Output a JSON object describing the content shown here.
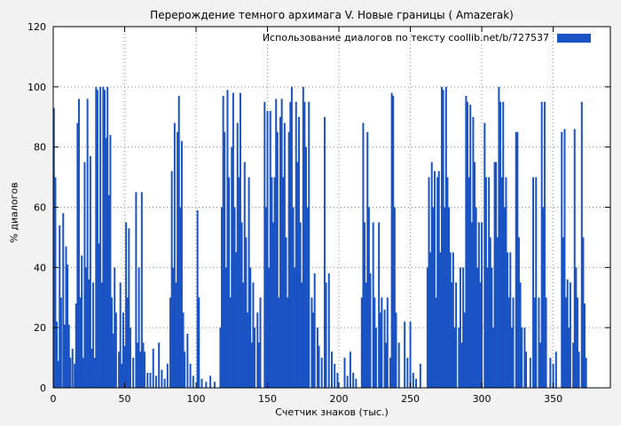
{
  "title": "Перерождение темного архимага V. Новые границы ( Amazerak)",
  "legend": {
    "label": "Использование диалогов по тексту coollib.net/b/727537"
  },
  "colors": {
    "bar": "#1a53c4",
    "grid": "#8f8f8f",
    "axis": "#000000",
    "figure_bg": "#f2f2f2",
    "plot_bg": "#ffffff"
  },
  "chart_data": {
    "type": "bar",
    "title": "Перерождение темного архимага V. Новые границы ( Amazerak)",
    "legend": "Использование диалогов по тексту coollib.net/b/727537",
    "xlabel": "Счетчик знаков (тыс.)",
    "ylabel": "% диалогов",
    "xlim": [
      0,
      390
    ],
    "ylim": [
      0,
      120
    ],
    "xticks": [
      0,
      50,
      100,
      150,
      200,
      250,
      300,
      350
    ],
    "yticks": [
      0,
      20,
      40,
      60,
      80,
      100,
      120
    ],
    "grid": "dotted",
    "legend_position": "top-right-inside",
    "points": [
      [
        0.5,
        93
      ],
      [
        1.5,
        70
      ],
      [
        2.5,
        22
      ],
      [
        3.5,
        9
      ],
      [
        4.5,
        54
      ],
      [
        5.5,
        30
      ],
      [
        7,
        58
      ],
      [
        8,
        21
      ],
      [
        9,
        47
      ],
      [
        10,
        41
      ],
      [
        11,
        21
      ],
      [
        12,
        10
      ],
      [
        13.5,
        13
      ],
      [
        15,
        8
      ],
      [
        16,
        28
      ],
      [
        17,
        88
      ],
      [
        18,
        96
      ],
      [
        19,
        30
      ],
      [
        20,
        44
      ],
      [
        21,
        10
      ],
      [
        22,
        75
      ],
      [
        23,
        40
      ],
      [
        24,
        96
      ],
      [
        25,
        36
      ],
      [
        26,
        77
      ],
      [
        27,
        13
      ],
      [
        28,
        35
      ],
      [
        29,
        10
      ],
      [
        30,
        100
      ],
      [
        31,
        99
      ],
      [
        32,
        48
      ],
      [
        33,
        100
      ],
      [
        34,
        35
      ],
      [
        35,
        100
      ],
      [
        36,
        99
      ],
      [
        37,
        83
      ],
      [
        38,
        100
      ],
      [
        39,
        64
      ],
      [
        40,
        84
      ],
      [
        41,
        30
      ],
      [
        42,
        18
      ],
      [
        43,
        40
      ],
      [
        44,
        25
      ],
      [
        46,
        12
      ],
      [
        47,
        35
      ],
      [
        48,
        8
      ],
      [
        49,
        25
      ],
      [
        50,
        14
      ],
      [
        51,
        55
      ],
      [
        52,
        30
      ],
      [
        53,
        53
      ],
      [
        54,
        20
      ],
      [
        56,
        10
      ],
      [
        58,
        65
      ],
      [
        59,
        15
      ],
      [
        60,
        40
      ],
      [
        61,
        12
      ],
      [
        62,
        65
      ],
      [
        63,
        15
      ],
      [
        64,
        12
      ],
      [
        66,
        5
      ],
      [
        68,
        5
      ],
      [
        70,
        13
      ],
      [
        72,
        4
      ],
      [
        74,
        15
      ],
      [
        76,
        6
      ],
      [
        78,
        3
      ],
      [
        80,
        8
      ],
      [
        82,
        30
      ],
      [
        83,
        72
      ],
      [
        84,
        40
      ],
      [
        85,
        88
      ],
      [
        86,
        35
      ],
      [
        87,
        85
      ],
      [
        88,
        97
      ],
      [
        89,
        60
      ],
      [
        90,
        82
      ],
      [
        91,
        25
      ],
      [
        92,
        12
      ],
      [
        94,
        18
      ],
      [
        96,
        8
      ],
      [
        98,
        4
      ],
      [
        101,
        59
      ],
      [
        102,
        30
      ],
      [
        104,
        3
      ],
      [
        107,
        2
      ],
      [
        110,
        4
      ],
      [
        113,
        2
      ],
      [
        117,
        20
      ],
      [
        118,
        60
      ],
      [
        119,
        97
      ],
      [
        120,
        85
      ],
      [
        121,
        40
      ],
      [
        122,
        99
      ],
      [
        123,
        70
      ],
      [
        124,
        30
      ],
      [
        125,
        80
      ],
      [
        126,
        98
      ],
      [
        127,
        60
      ],
      [
        128,
        45
      ],
      [
        129,
        88
      ],
      [
        130,
        70
      ],
      [
        131,
        98
      ],
      [
        132,
        55
      ],
      [
        133,
        35
      ],
      [
        134,
        75
      ],
      [
        135,
        50
      ],
      [
        136,
        25
      ],
      [
        137,
        70
      ],
      [
        138,
        40
      ],
      [
        139,
        15
      ],
      [
        140,
        35
      ],
      [
        141,
        20
      ],
      [
        143,
        25
      ],
      [
        144,
        15
      ],
      [
        145,
        30
      ],
      [
        148,
        95
      ],
      [
        149,
        60
      ],
      [
        150,
        92
      ],
      [
        151,
        40
      ],
      [
        152,
        92
      ],
      [
        153,
        70
      ],
      [
        154,
        55
      ],
      [
        155,
        70
      ],
      [
        156,
        96
      ],
      [
        157,
        85
      ],
      [
        158,
        30
      ],
      [
        159,
        90
      ],
      [
        160,
        96
      ],
      [
        161,
        70
      ],
      [
        162,
        88
      ],
      [
        163,
        50
      ],
      [
        164,
        30
      ],
      [
        165,
        85
      ],
      [
        166,
        95
      ],
      [
        167,
        100
      ],
      [
        168,
        60
      ],
      [
        169,
        40
      ],
      [
        170,
        95
      ],
      [
        171,
        75
      ],
      [
        172,
        90
      ],
      [
        173,
        55
      ],
      [
        174,
        35
      ],
      [
        175,
        100
      ],
      [
        176,
        95
      ],
      [
        177,
        80
      ],
      [
        178,
        60
      ],
      [
        179,
        95
      ],
      [
        181,
        30
      ],
      [
        182,
        25
      ],
      [
        183,
        38
      ],
      [
        185,
        20
      ],
      [
        186,
        14
      ],
      [
        188,
        10
      ],
      [
        190,
        90
      ],
      [
        191,
        35
      ],
      [
        193,
        38
      ],
      [
        195,
        12
      ],
      [
        197,
        8
      ],
      [
        199,
        5
      ],
      [
        204,
        10
      ],
      [
        206,
        4
      ],
      [
        208,
        12
      ],
      [
        210,
        5
      ],
      [
        212,
        3
      ],
      [
        216,
        30
      ],
      [
        217,
        88
      ],
      [
        218,
        55
      ],
      [
        219,
        35
      ],
      [
        220,
        85
      ],
      [
        221,
        60
      ],
      [
        222,
        38
      ],
      [
        224,
        55
      ],
      [
        225,
        30
      ],
      [
        226,
        20
      ],
      [
        228,
        55
      ],
      [
        229,
        25
      ],
      [
        230,
        30
      ],
      [
        232,
        26
      ],
      [
        233,
        15
      ],
      [
        234,
        30
      ],
      [
        236,
        10
      ],
      [
        237,
        98
      ],
      [
        238,
        97
      ],
      [
        239,
        60
      ],
      [
        240,
        25
      ],
      [
        242,
        15
      ],
      [
        246,
        22
      ],
      [
        248,
        10
      ],
      [
        250,
        22
      ],
      [
        252,
        5
      ],
      [
        254,
        3
      ],
      [
        257,
        8
      ],
      [
        262,
        40
      ],
      [
        263,
        70
      ],
      [
        264,
        45
      ],
      [
        265,
        75
      ],
      [
        266,
        60
      ],
      [
        267,
        72
      ],
      [
        268,
        30
      ],
      [
        269,
        70
      ],
      [
        270,
        72
      ],
      [
        271,
        45
      ],
      [
        272,
        100
      ],
      [
        273,
        99
      ],
      [
        274,
        60
      ],
      [
        275,
        100
      ],
      [
        276,
        70
      ],
      [
        277,
        60
      ],
      [
        278,
        45
      ],
      [
        279,
        35
      ],
      [
        280,
        45
      ],
      [
        281,
        20
      ],
      [
        282,
        35
      ],
      [
        284,
        20
      ],
      [
        285,
        40
      ],
      [
        286,
        15
      ],
      [
        287,
        40
      ],
      [
        288,
        25
      ],
      [
        289,
        97
      ],
      [
        290,
        95
      ],
      [
        291,
        70
      ],
      [
        292,
        94
      ],
      [
        293,
        55
      ],
      [
        294,
        90
      ],
      [
        295,
        75
      ],
      [
        296,
        60
      ],
      [
        297,
        40
      ],
      [
        298,
        55
      ],
      [
        299,
        35
      ],
      [
        300,
        55
      ],
      [
        302,
        88
      ],
      [
        303,
        70
      ],
      [
        304,
        40
      ],
      [
        305,
        70
      ],
      [
        306,
        50
      ],
      [
        307,
        40
      ],
      [
        308,
        20
      ],
      [
        309,
        75
      ],
      [
        310,
        75
      ],
      [
        311,
        50
      ],
      [
        312,
        100
      ],
      [
        313,
        95
      ],
      [
        314,
        70
      ],
      [
        315,
        95
      ],
      [
        316,
        60
      ],
      [
        317,
        70
      ],
      [
        318,
        45
      ],
      [
        319,
        30
      ],
      [
        320,
        45
      ],
      [
        321,
        20
      ],
      [
        322,
        30
      ],
      [
        324,
        85
      ],
      [
        325,
        85
      ],
      [
        326,
        50
      ],
      [
        327,
        35
      ],
      [
        328,
        20
      ],
      [
        330,
        20
      ],
      [
        331,
        12
      ],
      [
        334,
        10
      ],
      [
        336,
        70
      ],
      [
        337,
        30
      ],
      [
        338,
        70
      ],
      [
        340,
        30
      ],
      [
        341,
        15
      ],
      [
        342,
        95
      ],
      [
        343,
        60
      ],
      [
        344,
        95
      ],
      [
        345,
        30
      ],
      [
        348,
        10
      ],
      [
        350,
        8
      ],
      [
        352,
        12
      ],
      [
        356,
        85
      ],
      [
        357,
        50
      ],
      [
        358,
        86
      ],
      [
        359,
        30
      ],
      [
        360,
        36
      ],
      [
        361,
        20
      ],
      [
        362,
        35
      ],
      [
        364,
        15
      ],
      [
        365,
        86
      ],
      [
        366,
        40
      ],
      [
        367,
        30
      ],
      [
        368,
        12
      ],
      [
        370,
        95
      ],
      [
        371,
        50
      ],
      [
        372,
        28
      ],
      [
        373,
        10
      ]
    ]
  }
}
